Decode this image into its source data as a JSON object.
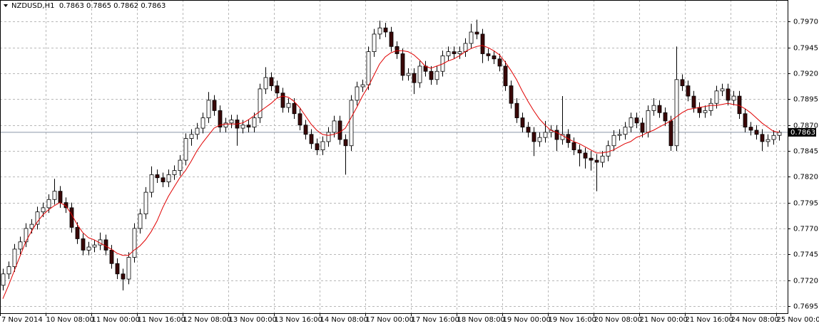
{
  "chart_data": {
    "type": "candlestick",
    "title": "NZDUSD,H1  0.7863 0.7865 0.7862 0.7863",
    "xlim": [
      -0.5,
      137.5
    ],
    "xticks": [
      {
        "value": 0,
        "label": "7 Nov 2014"
      },
      {
        "value": 8,
        "label": "10 Nov 08:00"
      },
      {
        "value": 16,
        "label": "11 Nov 00:00"
      },
      {
        "value": 24,
        "label": "11 Nov 16:00"
      },
      {
        "value": 32,
        "label": "12 Nov 08:00"
      },
      {
        "value": 40,
        "label": "13 Nov 00:00"
      },
      {
        "value": 48,
        "label": "13 Nov 16:00"
      },
      {
        "value": 56,
        "label": "14 Nov 08:00"
      },
      {
        "value": 64,
        "label": "17 Nov 00:00"
      },
      {
        "value": 72,
        "label": "17 Nov 16:00"
      },
      {
        "value": 80,
        "label": "18 Nov 08:00"
      },
      {
        "value": 88,
        "label": "19 Nov 00:00"
      },
      {
        "value": 96,
        "label": "19 Nov 16:00"
      },
      {
        "value": 104,
        "label": "20 Nov 08:00"
      },
      {
        "value": 112,
        "label": "21 Nov 00:00"
      },
      {
        "value": 120,
        "label": "21 Nov 16:00"
      },
      {
        "value": 128,
        "label": "24 Nov 08:00"
      },
      {
        "value": 136,
        "label": "25 Nov 00:00"
      }
    ],
    "ylim": [
      0.7688,
      0.7991
    ],
    "yticks": [
      {
        "value": 0.797,
        "label": "0.7970"
      },
      0.7945,
      {
        "value": 0.792,
        "label": "0.7920"
      },
      0.7895,
      {
        "value": 0.787,
        "label": "0.7870"
      },
      0.7845,
      {
        "value": 0.782,
        "label": "0.7820"
      },
      0.7795,
      {
        "value": 0.777,
        "label": "0.7770"
      },
      0.7745,
      {
        "value": 0.772,
        "label": "0.7720"
      },
      0.7695
    ],
    "grid": true,
    "bull_color": "#ffffff",
    "bear_color": "#3a0808",
    "ohlc": [
      [
        0.7715,
        0.7731,
        0.771,
        0.7726
      ],
      [
        0.7726,
        0.7738,
        0.7721,
        0.7733
      ],
      [
        0.7733,
        0.7755,
        0.7728,
        0.775
      ],
      [
        0.775,
        0.7762,
        0.7745,
        0.7757
      ],
      [
        0.7757,
        0.7775,
        0.7752,
        0.777
      ],
      [
        0.777,
        0.7779,
        0.7765,
        0.7774
      ],
      [
        0.7774,
        0.7791,
        0.7769,
        0.7786
      ],
      [
        0.7786,
        0.7795,
        0.7781,
        0.779
      ],
      [
        0.779,
        0.7803,
        0.7785,
        0.7798
      ],
      [
        0.7798,
        0.7818,
        0.7793,
        0.7806
      ],
      [
        0.7806,
        0.7811,
        0.779,
        0.7795
      ],
      [
        0.7795,
        0.78,
        0.7785,
        0.779
      ],
      [
        0.779,
        0.7795,
        0.7766,
        0.7771
      ],
      [
        0.7771,
        0.7776,
        0.7755,
        0.776
      ],
      [
        0.776,
        0.7765,
        0.7744,
        0.7749
      ],
      [
        0.7749,
        0.7757,
        0.7744,
        0.7752
      ],
      [
        0.7752,
        0.7759,
        0.7747,
        0.7754
      ],
      [
        0.7754,
        0.7766,
        0.7749,
        0.7759
      ],
      [
        0.7759,
        0.7764,
        0.7744,
        0.7749
      ],
      [
        0.7749,
        0.7754,
        0.7731,
        0.7736
      ],
      [
        0.7736,
        0.7741,
        0.7721,
        0.7726
      ],
      [
        0.7726,
        0.7731,
        0.771,
        0.7721
      ],
      [
        0.7721,
        0.7747,
        0.7716,
        0.7742
      ],
      [
        0.7742,
        0.7775,
        0.7737,
        0.777
      ],
      [
        0.777,
        0.7789,
        0.7765,
        0.7784
      ],
      [
        0.7784,
        0.781,
        0.7779,
        0.7805
      ],
      [
        0.7805,
        0.783,
        0.78,
        0.7822
      ],
      [
        0.7822,
        0.7827,
        0.7814,
        0.7819
      ],
      [
        0.7819,
        0.7824,
        0.781,
        0.7815
      ],
      [
        0.7815,
        0.7827,
        0.781,
        0.7822
      ],
      [
        0.7822,
        0.7831,
        0.7817,
        0.7826
      ],
      [
        0.7826,
        0.7841,
        0.7821,
        0.7836
      ],
      [
        0.7836,
        0.7862,
        0.7831,
        0.7857
      ],
      [
        0.7857,
        0.7866,
        0.785,
        0.7861
      ],
      [
        0.7861,
        0.7872,
        0.7856,
        0.7867
      ],
      [
        0.7867,
        0.7882,
        0.7862,
        0.7877
      ],
      [
        0.7877,
        0.7902,
        0.7872,
        0.7894
      ],
      [
        0.7894,
        0.7899,
        0.7879,
        0.7884
      ],
      [
        0.7884,
        0.7889,
        0.7863,
        0.7868
      ],
      [
        0.7868,
        0.7877,
        0.7863,
        0.7872
      ],
      [
        0.7872,
        0.788,
        0.7867,
        0.7875
      ],
      [
        0.7875,
        0.788,
        0.785,
        0.7867
      ],
      [
        0.7867,
        0.7875,
        0.7862,
        0.787
      ],
      [
        0.787,
        0.7875,
        0.7863,
        0.7868
      ],
      [
        0.7868,
        0.7882,
        0.7863,
        0.7877
      ],
      [
        0.7877,
        0.791,
        0.7872,
        0.7905
      ],
      [
        0.7905,
        0.7926,
        0.79,
        0.7916
      ],
      [
        0.7916,
        0.7921,
        0.7903,
        0.7908
      ],
      [
        0.7908,
        0.7913,
        0.7896,
        0.7901
      ],
      [
        0.7901,
        0.7906,
        0.7882,
        0.7887
      ],
      [
        0.7887,
        0.7896,
        0.7882,
        0.7891
      ],
      [
        0.7891,
        0.7896,
        0.7876,
        0.7881
      ],
      [
        0.7881,
        0.7886,
        0.7865,
        0.787
      ],
      [
        0.787,
        0.7875,
        0.7856,
        0.7861
      ],
      [
        0.7861,
        0.7866,
        0.7847,
        0.7852
      ],
      [
        0.7852,
        0.7857,
        0.7841,
        0.7846
      ],
      [
        0.7846,
        0.7859,
        0.7841,
        0.7854
      ],
      [
        0.7854,
        0.7868,
        0.7849,
        0.7863
      ],
      [
        0.7863,
        0.7879,
        0.7858,
        0.7874
      ],
      [
        0.7874,
        0.7879,
        0.7851,
        0.7856
      ],
      [
        0.7856,
        0.7861,
        0.7822,
        0.785
      ],
      [
        0.785,
        0.7899,
        0.7845,
        0.7894
      ],
      [
        0.7894,
        0.7912,
        0.7889,
        0.7907
      ],
      [
        0.7907,
        0.7914,
        0.7902,
        0.7909
      ],
      [
        0.7909,
        0.7946,
        0.7904,
        0.7941
      ],
      [
        0.7941,
        0.7963,
        0.7936,
        0.7958
      ],
      [
        0.7958,
        0.7971,
        0.7953,
        0.7964
      ],
      [
        0.7964,
        0.7969,
        0.7955,
        0.796
      ],
      [
        0.796,
        0.7965,
        0.7941,
        0.7946
      ],
      [
        0.7946,
        0.7951,
        0.7934,
        0.7939
      ],
      [
        0.7939,
        0.7944,
        0.7913,
        0.7918
      ],
      [
        0.7918,
        0.7925,
        0.7913,
        0.792
      ],
      [
        0.792,
        0.7925,
        0.79,
        0.7911
      ],
      [
        0.7911,
        0.7932,
        0.7906,
        0.7927
      ],
      [
        0.7927,
        0.7932,
        0.7917,
        0.7922
      ],
      [
        0.7922,
        0.7927,
        0.7909,
        0.7914
      ],
      [
        0.7914,
        0.7927,
        0.7909,
        0.7922
      ],
      [
        0.7922,
        0.7942,
        0.7917,
        0.7937
      ],
      [
        0.7937,
        0.7946,
        0.7932,
        0.7941
      ],
      [
        0.7941,
        0.7946,
        0.7934,
        0.7939
      ],
      [
        0.7939,
        0.7946,
        0.7934,
        0.7941
      ],
      [
        0.7941,
        0.7954,
        0.7936,
        0.7949
      ],
      [
        0.7949,
        0.7968,
        0.7944,
        0.796
      ],
      [
        0.796,
        0.7972,
        0.7953,
        0.7958
      ],
      [
        0.7958,
        0.7963,
        0.793,
        0.7939
      ],
      [
        0.7939,
        0.7944,
        0.7932,
        0.7937
      ],
      [
        0.7937,
        0.7942,
        0.7929,
        0.7934
      ],
      [
        0.7934,
        0.7939,
        0.7922,
        0.7927
      ],
      [
        0.7927,
        0.7932,
        0.7903,
        0.7908
      ],
      [
        0.7908,
        0.7913,
        0.7886,
        0.7891
      ],
      [
        0.7891,
        0.7896,
        0.7872,
        0.7877
      ],
      [
        0.7877,
        0.7882,
        0.7863,
        0.7868
      ],
      [
        0.7868,
        0.7873,
        0.7858,
        0.7863
      ],
      [
        0.7863,
        0.7868,
        0.784,
        0.7854
      ],
      [
        0.7854,
        0.7863,
        0.7849,
        0.7858
      ],
      [
        0.7858,
        0.7874,
        0.7853,
        0.7863
      ],
      [
        0.7863,
        0.787,
        0.7858,
        0.7865
      ],
      [
        0.7865,
        0.787,
        0.7845,
        0.7856
      ],
      [
        0.7856,
        0.7898,
        0.7851,
        0.7861
      ],
      [
        0.7861,
        0.7866,
        0.7848,
        0.7853
      ],
      [
        0.7853,
        0.7858,
        0.7841,
        0.7846
      ],
      [
        0.7846,
        0.7851,
        0.783,
        0.7843
      ],
      [
        0.7843,
        0.7848,
        0.7828,
        0.7838
      ],
      [
        0.7838,
        0.7845,
        0.7826,
        0.7836
      ],
      [
        0.7836,
        0.7842,
        0.7806,
        0.7834
      ],
      [
        0.7834,
        0.7845,
        0.7829,
        0.784
      ],
      [
        0.784,
        0.7855,
        0.7835,
        0.785
      ],
      [
        0.785,
        0.7865,
        0.7845,
        0.786
      ],
      [
        0.786,
        0.7866,
        0.7855,
        0.7861
      ],
      [
        0.7861,
        0.7873,
        0.7856,
        0.7868
      ],
      [
        0.7868,
        0.7882,
        0.7863,
        0.7877
      ],
      [
        0.7877,
        0.7882,
        0.7867,
        0.7872
      ],
      [
        0.7872,
        0.7877,
        0.7858,
        0.7863
      ],
      [
        0.7863,
        0.7889,
        0.7858,
        0.7884
      ],
      [
        0.7884,
        0.7896,
        0.7879,
        0.7889
      ],
      [
        0.7889,
        0.7894,
        0.7877,
        0.7882
      ],
      [
        0.7882,
        0.7887,
        0.7869,
        0.7874
      ],
      [
        0.7874,
        0.7879,
        0.7845,
        0.785
      ],
      [
        0.785,
        0.7946,
        0.7845,
        0.7914
      ],
      [
        0.7914,
        0.7919,
        0.7903,
        0.7908
      ],
      [
        0.7908,
        0.7913,
        0.7893,
        0.7898
      ],
      [
        0.7898,
        0.7903,
        0.7882,
        0.7887
      ],
      [
        0.7887,
        0.7892,
        0.7877,
        0.7882
      ],
      [
        0.7882,
        0.7889,
        0.7877,
        0.7884
      ],
      [
        0.7884,
        0.7896,
        0.7879,
        0.7891
      ],
      [
        0.7891,
        0.7908,
        0.7886,
        0.7903
      ],
      [
        0.7903,
        0.791,
        0.7898,
        0.7905
      ],
      [
        0.7905,
        0.791,
        0.7889,
        0.7894
      ],
      [
        0.7894,
        0.7903,
        0.7889,
        0.7898
      ],
      [
        0.7898,
        0.7903,
        0.7876,
        0.7881
      ],
      [
        0.7881,
        0.7886,
        0.7863,
        0.7868
      ],
      [
        0.7868,
        0.7873,
        0.786,
        0.7865
      ],
      [
        0.7865,
        0.787,
        0.7856,
        0.7861
      ],
      [
        0.7861,
        0.7866,
        0.7845,
        0.7854
      ],
      [
        0.7854,
        0.7861,
        0.7849,
        0.7856
      ],
      [
        0.7856,
        0.7865,
        0.7851,
        0.786
      ],
      [
        0.786,
        0.7865,
        0.7855,
        0.7863
      ]
    ],
    "ma": {
      "color": "#e00000",
      "values": [
        0.7702,
        0.7715,
        0.7729,
        0.7743,
        0.7757,
        0.7767,
        0.7776,
        0.7783,
        0.7788,
        0.7792,
        0.7795,
        0.7792,
        0.7784,
        0.7774,
        0.7766,
        0.7761,
        0.7759,
        0.7756,
        0.7753,
        0.775,
        0.7746,
        0.7744,
        0.7744,
        0.7749,
        0.7753,
        0.7759,
        0.7767,
        0.7777,
        0.779,
        0.7801,
        0.781,
        0.7819,
        0.7826,
        0.7835,
        0.7845,
        0.7853,
        0.786,
        0.7867,
        0.787,
        0.7871,
        0.7871,
        0.7871,
        0.7872,
        0.7875,
        0.7879,
        0.7883,
        0.7887,
        0.7891,
        0.7896,
        0.7898,
        0.7897,
        0.7893,
        0.7887,
        0.7879,
        0.7871,
        0.7865,
        0.7861,
        0.786,
        0.7861,
        0.7863,
        0.7867,
        0.7877,
        0.7887,
        0.7898,
        0.7907,
        0.7918,
        0.7929,
        0.7936,
        0.794,
        0.7942,
        0.7942,
        0.7941,
        0.7938,
        0.7933,
        0.7927,
        0.7925,
        0.7927,
        0.7929,
        0.7932,
        0.7934,
        0.7937,
        0.7941,
        0.7944,
        0.7946,
        0.7947,
        0.7945,
        0.7942,
        0.7938,
        0.7931,
        0.7923,
        0.7914,
        0.7903,
        0.7893,
        0.7884,
        0.7876,
        0.787,
        0.7865,
        0.7863,
        0.786,
        0.7857,
        0.7854,
        0.7852,
        0.7849,
        0.7846,
        0.7843,
        0.7843,
        0.7844,
        0.7846,
        0.7849,
        0.7852,
        0.7854,
        0.7858,
        0.786,
        0.7863,
        0.7865,
        0.7868,
        0.7871,
        0.7874,
        0.7878,
        0.7882,
        0.7885,
        0.7886,
        0.7887,
        0.7888,
        0.7889,
        0.7889,
        0.789,
        0.7891,
        0.789,
        0.7889,
        0.7886,
        0.7882,
        0.7877,
        0.7872,
        0.7868,
        0.7864,
        0.7863
      ]
    },
    "last_price": 0.7863,
    "last_price_color": "#8a98a8"
  }
}
